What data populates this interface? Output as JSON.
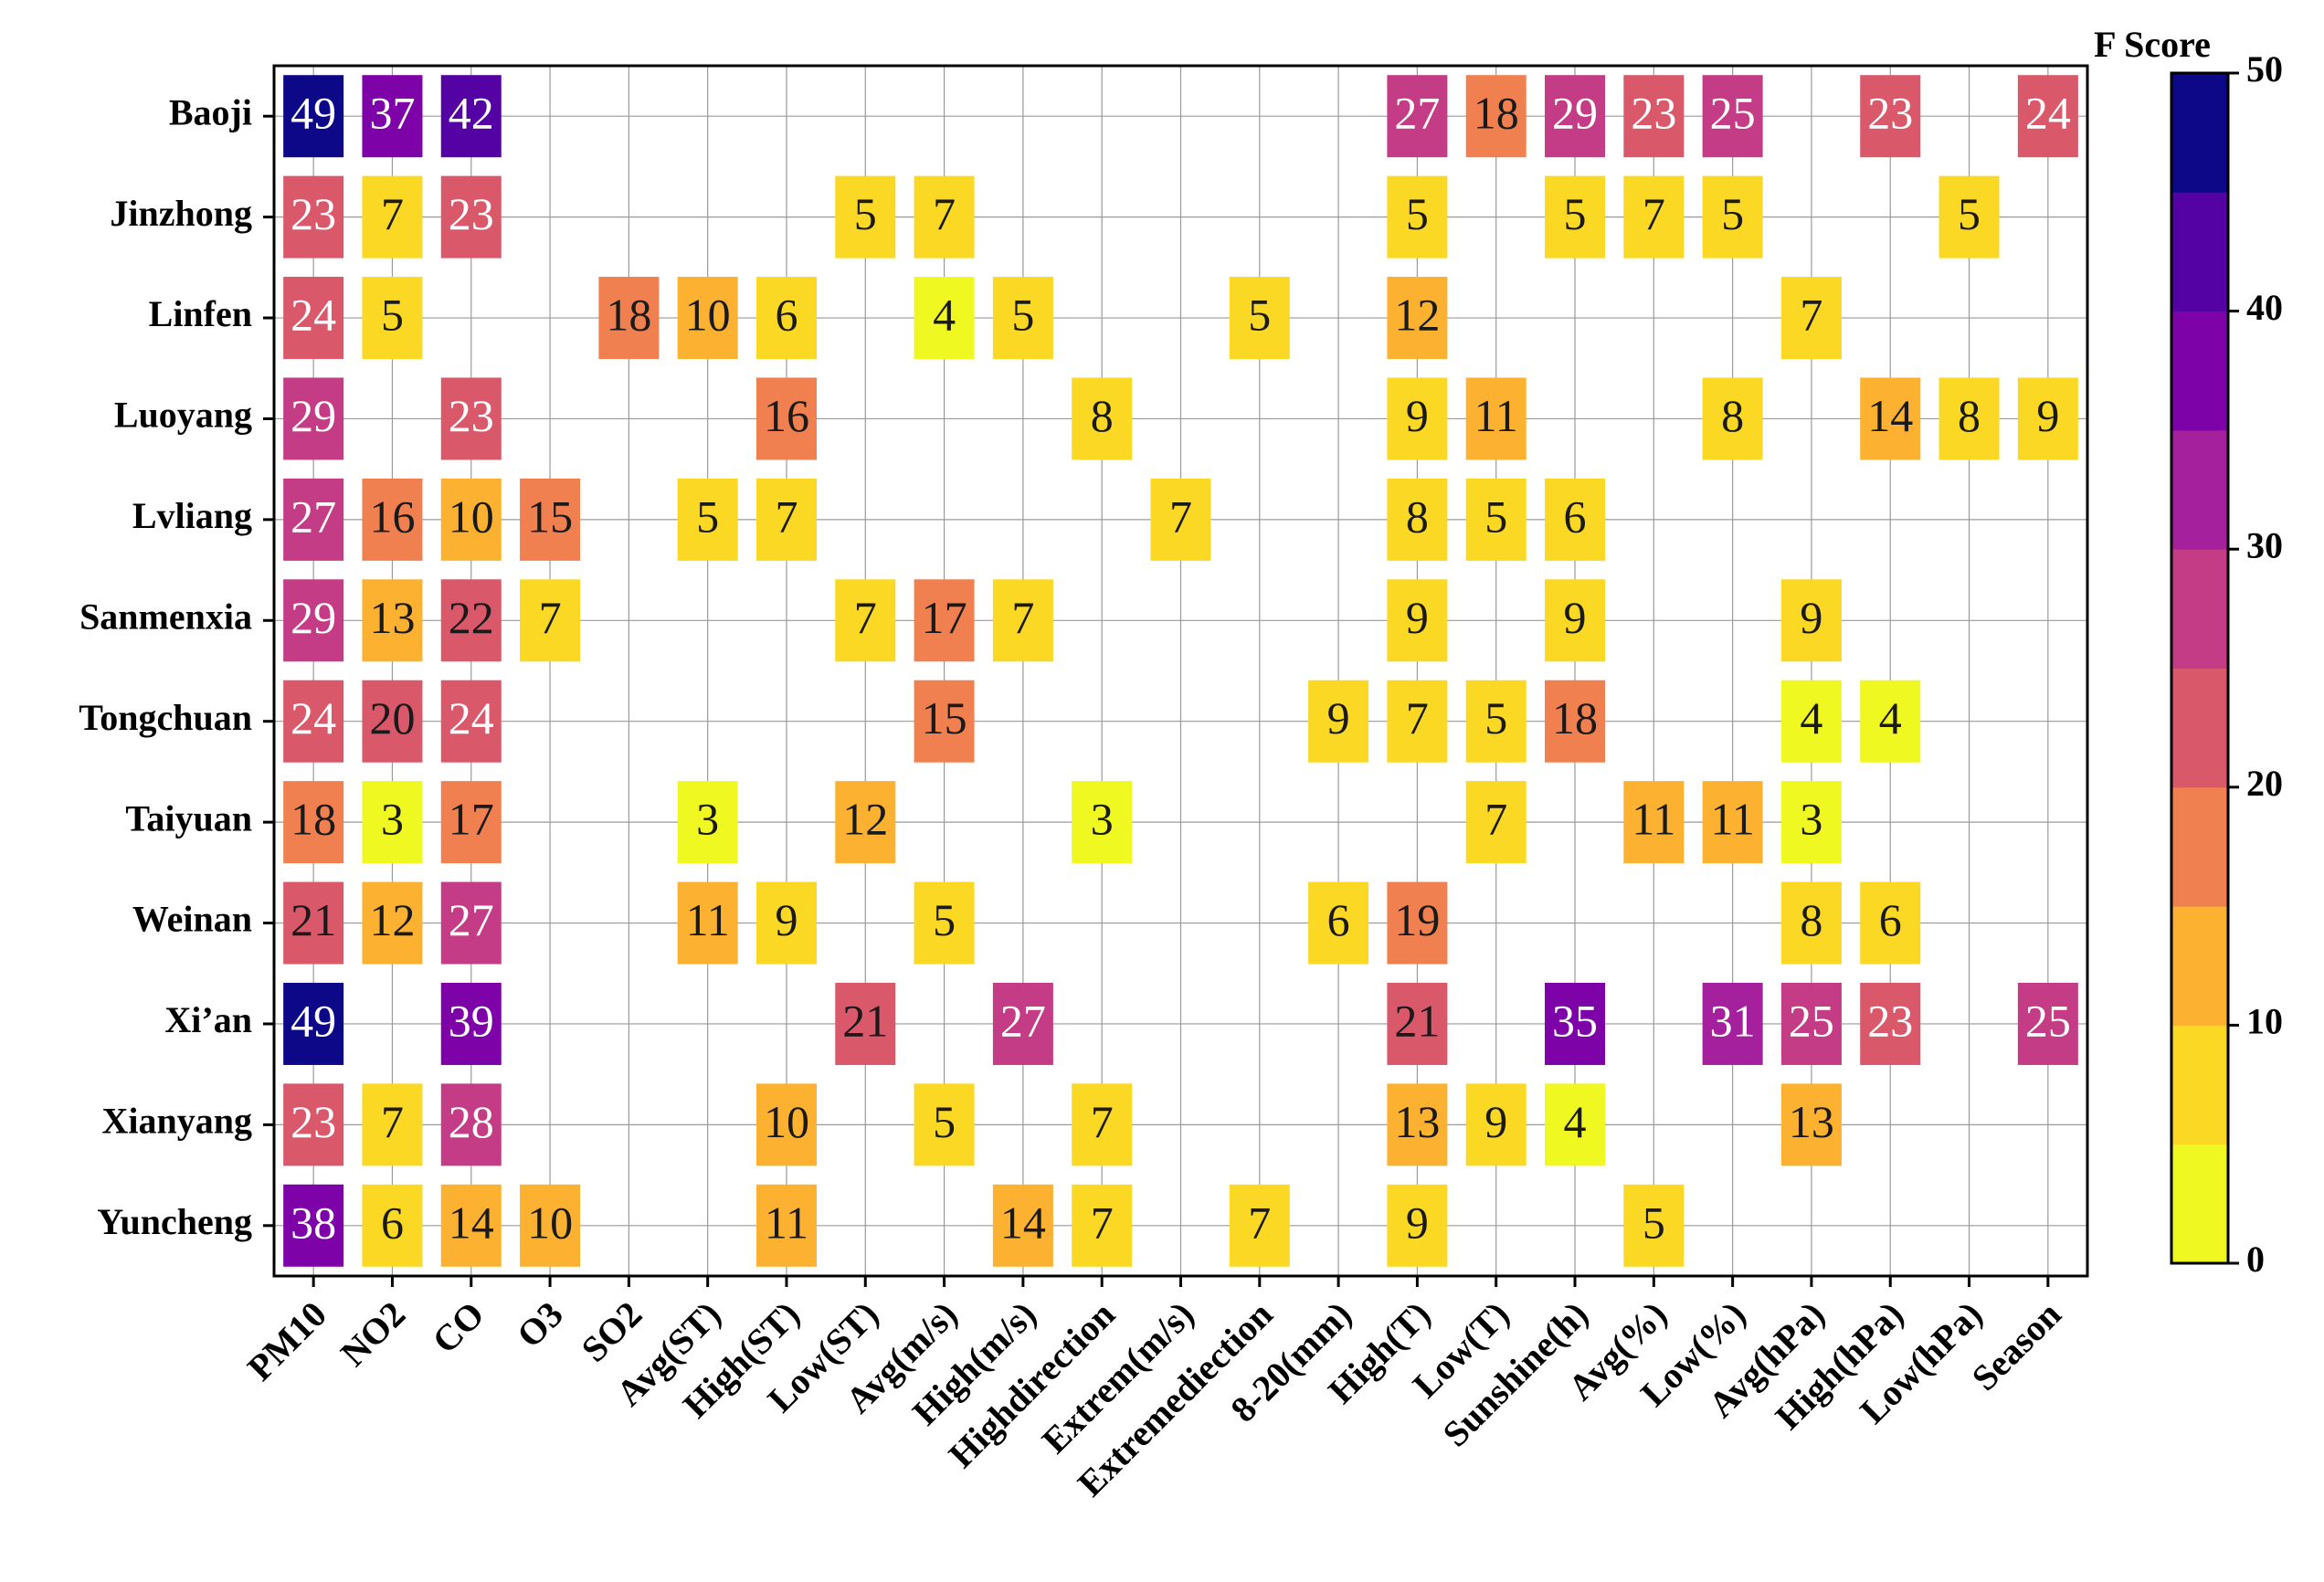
{
  "chart_data": {
    "type": "heatmap",
    "title": "",
    "xlabel": "",
    "ylabel": "",
    "rows": [
      "Baoji",
      "Jinzhong",
      "Linfen",
      "Luoyang",
      "Lvliang",
      "Sanmenxia",
      "Tongchuan",
      "Taiyuan",
      "Weinan",
      "Xi’an",
      "Xianyang",
      "Yuncheng"
    ],
    "columns": [
      "PM10",
      "NO2",
      "CO",
      "O3",
      "SO2",
      "Avg(ST)",
      "High(ST)",
      "Low(ST)",
      "Avg(m/s)",
      "High(m/s)",
      "Highdirection",
      "Extrem(m/s)",
      "Extremediection",
      "8-20(mm)",
      "High(T)",
      "Low(T)",
      "Sunshine(h)",
      "Avg(%)",
      "Low(%)",
      "Avg(hPa)",
      "High(hPa)",
      "Low(hPa)",
      "Season"
    ],
    "values": [
      [
        49,
        37,
        42,
        null,
        null,
        null,
        null,
        null,
        null,
        null,
        null,
        null,
        null,
        null,
        27,
        18,
        29,
        23,
        25,
        null,
        23,
        null,
        24
      ],
      [
        23,
        7,
        23,
        null,
        null,
        null,
        null,
        5,
        7,
        null,
        null,
        null,
        null,
        null,
        5,
        null,
        5,
        7,
        5,
        null,
        null,
        5,
        null
      ],
      [
        24,
        5,
        null,
        null,
        18,
        10,
        6,
        null,
        4,
        5,
        null,
        null,
        5,
        null,
        12,
        null,
        null,
        null,
        null,
        7,
        null,
        null,
        null
      ],
      [
        29,
        null,
        23,
        null,
        null,
        null,
        16,
        null,
        null,
        null,
        8,
        null,
        null,
        null,
        9,
        11,
        null,
        null,
        8,
        null,
        14,
        8,
        9
      ],
      [
        27,
        16,
        10,
        15,
        null,
        5,
        7,
        null,
        null,
        null,
        null,
        7,
        null,
        null,
        8,
        5,
        6,
        null,
        null,
        null,
        null,
        null,
        null
      ],
      [
        29,
        13,
        22,
        7,
        null,
        null,
        null,
        7,
        17,
        7,
        null,
        null,
        null,
        null,
        9,
        null,
        9,
        null,
        null,
        9,
        null,
        null,
        null
      ],
      [
        24,
        20,
        24,
        null,
        null,
        null,
        null,
        null,
        15,
        null,
        null,
        null,
        null,
        9,
        7,
        5,
        18,
        null,
        null,
        4,
        4,
        null,
        null
      ],
      [
        18,
        3,
        17,
        null,
        null,
        3,
        null,
        12,
        null,
        null,
        3,
        null,
        null,
        null,
        null,
        7,
        null,
        11,
        11,
        3,
        null,
        null,
        null
      ],
      [
        21,
        12,
        27,
        null,
        null,
        11,
        9,
        null,
        5,
        null,
        null,
        null,
        null,
        6,
        19,
        null,
        null,
        null,
        null,
        8,
        6,
        null,
        null
      ],
      [
        49,
        null,
        39,
        null,
        null,
        null,
        null,
        21,
        null,
        27,
        null,
        null,
        null,
        null,
        21,
        null,
        35,
        null,
        31,
        25,
        23,
        null,
        25
      ],
      [
        23,
        7,
        28,
        null,
        null,
        null,
        10,
        null,
        5,
        null,
        7,
        null,
        null,
        null,
        13,
        9,
        4,
        null,
        null,
        13,
        null,
        null,
        null
      ],
      [
        38,
        6,
        14,
        10,
        null,
        null,
        11,
        null,
        null,
        14,
        7,
        null,
        7,
        null,
        9,
        null,
        null,
        5,
        null,
        null,
        null,
        null,
        null
      ]
    ],
    "colorbar": {
      "title": "F Score",
      "range": [
        0,
        50
      ],
      "ticks": [
        0,
        10,
        20,
        30,
        40,
        50
      ],
      "bins": [
        {
          "from": 0,
          "to": 5,
          "color": "#eff821"
        },
        {
          "from": 5,
          "to": 10,
          "color": "#fad824"
        },
        {
          "from": 10,
          "to": 15,
          "color": "#fcb131"
        },
        {
          "from": 15,
          "to": 20,
          "color": "#f0804f"
        },
        {
          "from": 20,
          "to": 25,
          "color": "#d9586a"
        },
        {
          "from": 25,
          "to": 30,
          "color": "#c43c85"
        },
        {
          "from": 30,
          "to": 35,
          "color": "#a4209c"
        },
        {
          "from": 35,
          "to": 40,
          "color": "#7d03a8"
        },
        {
          "from": 40,
          "to": 45,
          "color": "#5502a4"
        },
        {
          "from": 45,
          "to": 50,
          "color": "#0d0887"
        }
      ]
    },
    "cell_text_colors": {
      "dark": "#1a1a1a",
      "light": "#ffffff"
    },
    "light_text_threshold": 23
  }
}
